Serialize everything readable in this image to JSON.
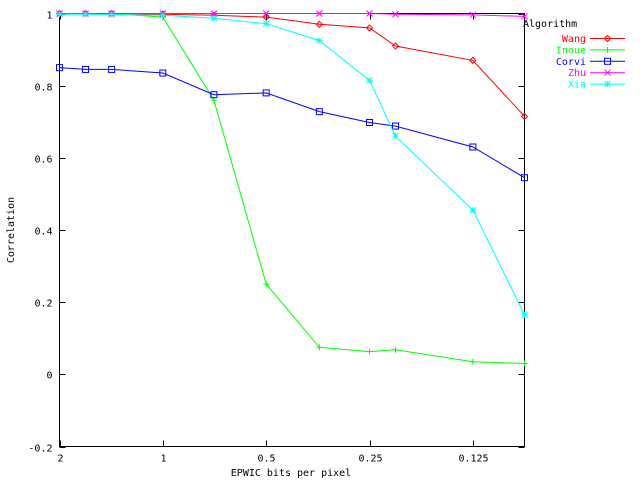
{
  "chart_data": {
    "type": "line",
    "title": "",
    "xlabel": "EPWIC bits per pixel",
    "ylabel": "Correlation",
    "x_scale": "log",
    "xlim": [
      2,
      0.0884
    ],
    "ylim": [
      -0.2,
      1.0
    ],
    "x_ticks": [
      {
        "value": 2,
        "label": "2"
      },
      {
        "value": 1,
        "label": "1"
      },
      {
        "value": 0.5,
        "label": "0.5"
      },
      {
        "value": 0.25,
        "label": "0.25"
      },
      {
        "value": 0.125,
        "label": "0.125"
      }
    ],
    "y_ticks": [
      {
        "value": -0.2,
        "label": "-0.2"
      },
      {
        "value": 0,
        "label": "0"
      },
      {
        "value": 0.2,
        "label": "0.2"
      },
      {
        "value": 0.4,
        "label": "0.4"
      },
      {
        "value": 0.6,
        "label": "0.6"
      },
      {
        "value": 0.8,
        "label": "0.8"
      },
      {
        "value": 1.0,
        "label": "1"
      }
    ],
    "grid": false,
    "legend_title": "Algorithm",
    "legend_position": "top-right",
    "series": [
      {
        "name": "Wang",
        "color": "#ff0000",
        "marker": "diamond",
        "x": [
          2,
          1.68,
          1.41,
          1,
          0.71,
          0.5,
          0.35,
          0.25,
          0.21,
          0.125,
          0.0884
        ],
        "y": [
          1.0,
          1.0,
          1.0,
          0.998,
          0.995,
          0.99,
          0.97,
          0.96,
          0.91,
          0.87,
          0.715
        ]
      },
      {
        "name": "Inoue",
        "color": "#00ff00",
        "marker": "plus",
        "x": [
          2,
          1.68,
          1.41,
          1,
          0.71,
          0.5,
          0.35,
          0.25,
          0.21,
          0.125,
          0.0884
        ],
        "y": [
          1.0,
          1.0,
          1.0,
          0.99,
          0.76,
          0.25,
          0.075,
          0.063,
          0.068,
          0.035,
          0.03
        ]
      },
      {
        "name": "Corvi",
        "color": "#0000ff",
        "marker": "square",
        "x": [
          2,
          1.68,
          1.41,
          1,
          0.71,
          0.5,
          0.35,
          0.25,
          0.21,
          0.125,
          0.0884
        ],
        "y": [
          0.85,
          0.845,
          0.845,
          0.835,
          0.775,
          0.78,
          0.728,
          0.698,
          0.688,
          0.63,
          0.545
        ]
      },
      {
        "name": "Zhu",
        "color": "#ff00ff",
        "marker": "cross",
        "x": [
          2,
          1.68,
          1.41,
          1,
          0.71,
          0.5,
          0.35,
          0.25,
          0.21,
          0.125,
          0.0884
        ],
        "y": [
          1.0,
          1.0,
          1.0,
          1.0,
          1.0,
          1.0,
          1.0,
          1.0,
          0.998,
          0.996,
          0.992
        ]
      },
      {
        "name": "Xia",
        "color": "#00ffff",
        "marker": "star",
        "x": [
          2,
          1.68,
          1.41,
          1,
          0.71,
          0.5,
          0.35,
          0.25,
          0.21,
          0.125,
          0.0884
        ],
        "y": [
          0.998,
          0.998,
          0.997,
          0.995,
          0.987,
          0.972,
          0.925,
          0.815,
          0.66,
          0.455,
          0.165
        ]
      }
    ]
  }
}
